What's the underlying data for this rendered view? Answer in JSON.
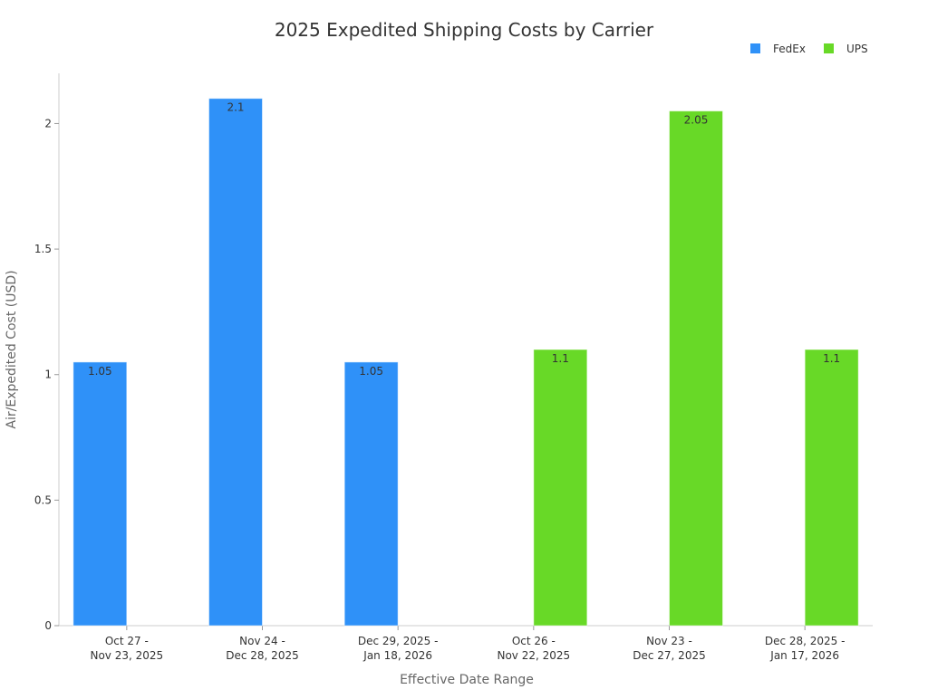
{
  "chart_data": {
    "type": "bar",
    "title": "2025 Expedited Shipping Costs by Carrier",
    "xlabel": "Effective Date Range",
    "ylabel": "Air/Expedited Cost (USD)",
    "ylim": [
      0,
      2.2
    ],
    "yticks": [
      "0",
      "0.5",
      "1",
      "1.5",
      "2"
    ],
    "ytick_values": [
      0,
      0.5,
      1,
      1.5,
      2
    ],
    "categories": [
      [
        "Oct 27 -",
        "Nov 23, 2025"
      ],
      [
        "Nov 24 -",
        "Dec 28, 2025"
      ],
      [
        "Dec 29, 2025 -",
        "Jan 18, 2026"
      ],
      [
        "Oct 26 -",
        "Nov 22, 2025"
      ],
      [
        "Nov 23 -",
        "Dec 27, 2025"
      ],
      [
        "Dec 28, 2025 -",
        "Jan 17, 2026"
      ]
    ],
    "series": [
      {
        "name": "FedEx",
        "color": "#2f91f8",
        "values": [
          1.05,
          2.1,
          1.05,
          null,
          null,
          null
        ],
        "labels": [
          "1.05",
          "2.1",
          "1.05",
          null,
          null,
          null
        ]
      },
      {
        "name": "UPS",
        "color": "#68d927",
        "values": [
          null,
          null,
          null,
          1.1,
          2.05,
          1.1
        ],
        "labels": [
          null,
          null,
          null,
          "1.1",
          "2.05",
          "1.1"
        ]
      }
    ],
    "legend": "top-right",
    "grid": false
  }
}
